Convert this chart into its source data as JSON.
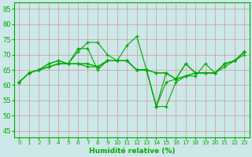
{
  "xlabel": "Humidité relative (%)",
  "xlim": [
    -0.5,
    23.5
  ],
  "ylim": [
    43,
    87
  ],
  "yticks": [
    45,
    50,
    55,
    60,
    65,
    70,
    75,
    80,
    85
  ],
  "xticks": [
    0,
    1,
    2,
    3,
    4,
    5,
    6,
    7,
    8,
    9,
    10,
    11,
    12,
    13,
    14,
    15,
    16,
    17,
    18,
    19,
    20,
    21,
    22,
    23
  ],
  "bg_color": "#cce8e8",
  "line_color": "#00aa00",
  "grid_color": "#cc9999",
  "spine_color": "#00aa00",
  "series": [
    [
      61,
      64,
      65,
      66,
      67,
      67,
      71,
      74,
      74,
      70,
      68,
      73,
      76,
      65,
      53,
      53,
      61,
      63,
      63,
      67,
      64,
      66,
      68,
      70
    ],
    [
      61,
      64,
      65,
      66,
      67,
      67,
      72,
      72,
      65,
      68,
      68,
      68,
      65,
      65,
      53,
      61,
      62,
      67,
      64,
      64,
      64,
      67,
      68,
      71
    ],
    [
      61,
      64,
      65,
      66,
      67,
      67,
      67,
      66,
      66,
      68,
      68,
      68,
      65,
      65,
      53,
      64,
      62,
      63,
      64,
      64,
      64,
      67,
      68,
      71
    ],
    [
      61,
      64,
      65,
      67,
      68,
      67,
      67,
      67,
      66,
      68,
      68,
      68,
      65,
      65,
      64,
      64,
      62,
      63,
      64,
      64,
      64,
      67,
      68,
      71
    ],
    [
      61,
      64,
      65,
      67,
      68,
      67,
      67,
      67,
      66,
      68,
      68,
      68,
      65,
      65,
      64,
      64,
      62,
      67,
      64,
      64,
      64,
      67,
      68,
      71
    ]
  ]
}
